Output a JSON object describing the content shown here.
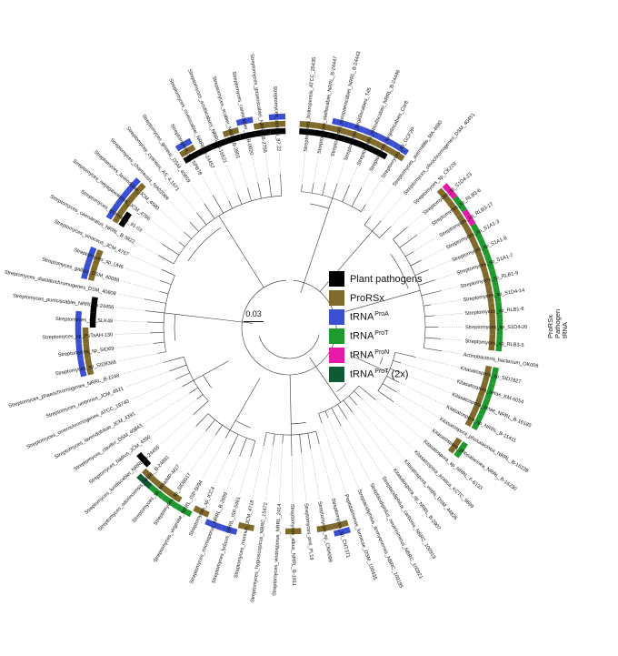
{
  "legend": {
    "items": [
      {
        "label": "Plant pathogens",
        "sup": "",
        "suffix": "",
        "color": "#000000",
        "icon": "legend-swatch"
      },
      {
        "label": "ProRSx",
        "sup": "",
        "suffix": "",
        "color": "#7f6a2c",
        "icon": "legend-swatch"
      },
      {
        "label": "tRNA",
        "sup": "ProA",
        "suffix": "",
        "color": "#3b4fd1",
        "icon": "legend-swatch"
      },
      {
        "label": "tRNA",
        "sup": "ProT",
        "suffix": "",
        "color": "#1f9a2f",
        "icon": "legend-swatch"
      },
      {
        "label": "tRNA",
        "sup": "ProN",
        "suffix": "",
        "color": "#e61aa8",
        "icon": "legend-swatch"
      },
      {
        "label": "tRNA",
        "sup": "ProT",
        "suffix": " (2x)",
        "color": "#0f5a35",
        "icon": "legend-swatch"
      }
    ]
  },
  "scale_bar": {
    "label": "0.03"
  },
  "ring_labels": [
    "ProRSx",
    "Pathogen",
    "tRNA"
  ],
  "leaves": [
    {
      "name": "Streptomyces_bottropensis_ATCC_25435",
      "pathogen": true,
      "prorsx": true,
      "trna": ""
    },
    {
      "name": "Streptomyces_stelliscabiei_NRRL_B-24447",
      "pathogen": true,
      "prorsx": true,
      "trna": ""
    },
    {
      "name": "Streptomyces_europaeiscabiei_NRRL_B-24443",
      "pathogen": true,
      "prorsx": true,
      "trna": "ProA"
    },
    {
      "name": "Streptomyces_turgidiscabies_T45",
      "pathogen": true,
      "prorsx": true,
      "trna": "ProA"
    },
    {
      "name": "Streptomyces_reticuliscabiei_NRRL_B-24446",
      "pathogen": true,
      "prorsx": true,
      "trna": "ProA"
    },
    {
      "name": "Streptomyces_turgidiscabies_Car8",
      "pathogen": true,
      "prorsx": true,
      "trna": "ProA"
    },
    {
      "name": "Streptomyces_sp_GCF2P",
      "pathogen": false,
      "prorsx": true,
      "trna": "ProA"
    },
    {
      "name": "Streptomyces_avermitilis_MA-4680",
      "pathogen": false,
      "prorsx": false,
      "trna": ""
    },
    {
      "name": "Streptomyces_olivochromogenes_DSM_40451",
      "pathogen": false,
      "prorsx": false,
      "trna": ""
    },
    {
      "name": "Streptomyces_sp_CK229",
      "pathogen": false,
      "prorsx": false,
      "trna": ""
    },
    {
      "name": "Streptomyces_sp_S1D4-23",
      "pathogen": false,
      "prorsx": true,
      "trna": "ProN"
    },
    {
      "name": "Streptomyces_sp_RLB3-6",
      "pathogen": false,
      "prorsx": true,
      "trna": "ProT"
    },
    {
      "name": "Streptomyces_sp_RLB3-17",
      "pathogen": false,
      "prorsx": true,
      "trna": "ProN"
    },
    {
      "name": "Streptomyces_sp_S1A1-3",
      "pathogen": false,
      "prorsx": true,
      "trna": "ProT"
    },
    {
      "name": "Streptomyces_sp_S1A1-8",
      "pathogen": false,
      "prorsx": true,
      "trna": "ProT"
    },
    {
      "name": "Streptomyces_sp_S1A1-7",
      "pathogen": false,
      "prorsx": true,
      "trna": "ProT"
    },
    {
      "name": "Streptomyces_sp_RLB1-9",
      "pathogen": false,
      "prorsx": true,
      "trna": "ProT"
    },
    {
      "name": "Streptomyces_sp_S1D4-14",
      "pathogen": false,
      "prorsx": true,
      "trna": "ProT"
    },
    {
      "name": "Streptomyces_sp_RLB1-8",
      "pathogen": false,
      "prorsx": true,
      "trna": "ProT"
    },
    {
      "name": "Streptomyces_sp_S1D4-20",
      "pathogen": false,
      "prorsx": true,
      "trna": "ProT"
    },
    {
      "name": "Streptomyces_sp_RLB3-5",
      "pathogen": false,
      "prorsx": true,
      "trna": "ProT"
    },
    {
      "name": "Actinobacteria_bacterium_OK006",
      "pathogen": false,
      "prorsx": false,
      "trna": ""
    },
    {
      "name": "Kitasatospora_sp_SID7827",
      "pathogen": false,
      "prorsx": true,
      "trna": "ProT"
    },
    {
      "name": "Kitasatospora_setae_KM-6054",
      "pathogen": false,
      "prorsx": true,
      "trna": "ProT"
    },
    {
      "name": "Kitasatospora_setae_NRRL_B-16185",
      "pathogen": false,
      "prorsx": true,
      "trna": "ProT"
    },
    {
      "name": "Kitasatospora_sp_NRRL_B-11411",
      "pathogen": false,
      "prorsx": true,
      "trna": "ProT"
    },
    {
      "name": "Kitasatospora_phosalacinea_NRRL_B-16228",
      "pathogen": false,
      "prorsx": false,
      "trna": ""
    },
    {
      "name": "Kitasatospora_phosalacinea_NRRL_B-16230",
      "pathogen": false,
      "prorsx": true,
      "trna": "ProT"
    },
    {
      "name": "Kitasatospora_sp_NRRL_F-6133",
      "pathogen": false,
      "prorsx": false,
      "trna": ""
    },
    {
      "name": "Kitasatospora_azatica_KCTC_9699",
      "pathogen": false,
      "prorsx": false,
      "trna": ""
    },
    {
      "name": "Kitasatospora_viridis_DSM_44826",
      "pathogen": false,
      "prorsx": false,
      "trna": ""
    },
    {
      "name": "Kitasatospora_sp_NRRL_B-2907",
      "pathogen": false,
      "prorsx": false,
      "trna": ""
    },
    {
      "name": "Streptacidiphilus_carbonis_NBRC_100919",
      "pathogen": false,
      "prorsx": false,
      "trna": ""
    },
    {
      "name": "Streptacidiphilus_neutrinimicus_NBRC_100921",
      "pathogen": false,
      "prorsx": false,
      "trna": ""
    },
    {
      "name": "Streptacidiphilus_anmyonensis_NBRC_103185",
      "pathogen": false,
      "prorsx": false,
      "trna": ""
    },
    {
      "name": "Peptidalmonas_formicae_DSM_100435",
      "pathogen": false,
      "prorsx": false,
      "trna": ""
    },
    {
      "name": "Streptomyces_sp_CNT371",
      "pathogen": false,
      "prorsx": true,
      "trna": "ProA"
    },
    {
      "name": "Streptomyces_sp_CNH099",
      "pathogen": false,
      "prorsx": true,
      "trna": ""
    },
    {
      "name": "Streptomyces_prni_PL19",
      "pathogen": false,
      "prorsx": false,
      "trna": ""
    },
    {
      "name": "Streptomyces_albus_NRRL_B-1811",
      "pathogen": false,
      "prorsx": true,
      "trna": ""
    },
    {
      "name": "Streptomyces_viridosporus_NRRL_2414",
      "pathogen": false,
      "prorsx": false,
      "trna": ""
    },
    {
      "name": "Streptomyces_hygroscopicus_NBRC_15472",
      "pathogen": false,
      "prorsx": false,
      "trna": ""
    },
    {
      "name": "Streptomyces_murinus_JCM_4718",
      "pathogen": false,
      "prorsx": true,
      "trna": ""
    },
    {
      "name": "Streptomyces_lydicus_NRRL_ISP-5461",
      "pathogen": false,
      "prorsx": false,
      "trna": "ProA"
    },
    {
      "name": "Streptomyces_microsporus_NRRL_B-2659",
      "pathogen": false,
      "prorsx": false,
      "trna": "ProA"
    },
    {
      "name": "Streptomyces_sp_ICC4",
      "pathogen": false,
      "prorsx": true,
      "trna": ""
    },
    {
      "name": "Streptomyces_virginiae_NRRL_ISP-5094",
      "pathogen": false,
      "prorsx": false,
      "trna": "ProT"
    },
    {
      "name": "Streptomyces_sp_SID8017",
      "pathogen": false,
      "prorsx": true,
      "trna": "ProT"
    },
    {
      "name": "Streptomyces_sp_MnatMP-M17",
      "pathogen": false,
      "prorsx": true,
      "trna": "ProT"
    },
    {
      "name": "Streptomyces_odorinoensis_NRRL_B-24891",
      "pathogen": false,
      "prorsx": true,
      "trna": "ProT2"
    },
    {
      "name": "Streptomyces_luridiscabiei_NRRL_B-24455",
      "pathogen": true,
      "prorsx": false,
      "trna": ""
    },
    {
      "name": "Streptomyces_badius_JCM_4350",
      "pathogen": false,
      "prorsx": false,
      "trna": ""
    },
    {
      "name": "Streptomyces_clavifer_DSM_40843",
      "pathogen": false,
      "prorsx": false,
      "trna": ""
    },
    {
      "name": "Streptomyces_lavendofoliae_JCM_4391",
      "pathogen": false,
      "prorsx": false,
      "trna": ""
    },
    {
      "name": "Streptomyces_cinerochromogenes_ATCC_19740",
      "pathogen": false,
      "prorsx": false,
      "trna": ""
    },
    {
      "name": "Streptomyces_umbrinus_JCM_4521",
      "pathogen": false,
      "prorsx": false,
      "trna": ""
    },
    {
      "name": "Streptomyces_phaeochromogenes_NRRL_B-1248",
      "pathogen": false,
      "prorsx": false,
      "trna": ""
    },
    {
      "name": "Streptomyces_sp_SID8366",
      "pathogen": false,
      "prorsx": true,
      "trna": "ProA"
    },
    {
      "name": "Streptomyces_sp_SID69",
      "pathogen": false,
      "prorsx": true,
      "trna": "ProA"
    },
    {
      "name": "Streptomyces_sp_PsTaAH-130",
      "pathogen": false,
      "prorsx": true,
      "trna": "ProA"
    },
    {
      "name": "Streptomyces_sp_SLK48",
      "pathogen": true,
      "prorsx": false,
      "trna": "ProA"
    },
    {
      "name": "Streptomyces_puniciscabiei_NRRL_B-24456",
      "pathogen": true,
      "prorsx": false,
      "trna": ""
    },
    {
      "name": "Streptomyces_diastatochromogenes_DSM_40608",
      "pathogen": false,
      "prorsx": false,
      "trna": ""
    },
    {
      "name": "Streptomyces_galbus_DSM_40089",
      "pathogen": false,
      "prorsx": true,
      "trna": "ProA"
    },
    {
      "name": "Streptomyces_sp_UH6",
      "pathogen": false,
      "prorsx": true,
      "trna": "ProA"
    },
    {
      "name": "Streptomyces_vinaceus_JCM_4767",
      "pathogen": false,
      "prorsx": false,
      "trna": ""
    },
    {
      "name": "Streptomyces_caeruleatus_NRRL_B-3822",
      "pathogen": false,
      "prorsx": false,
      "trna": ""
    },
    {
      "name": "Streptomyces_ipomoeae_91-03",
      "pathogen": true,
      "prorsx": true,
      "trna": "ProA"
    },
    {
      "name": "Streptomyces_neyagawaensis_JCM_4786",
      "pathogen": false,
      "prorsx": true,
      "trna": "ProA"
    },
    {
      "name": "Streptomyces_lavendulae_JCM_4580",
      "pathogen": false,
      "prorsx": true,
      "trna": "ProA"
    },
    {
      "name": "Streptomyces_chartreusis_NA02069",
      "pathogen": false,
      "prorsx": false,
      "trna": ""
    },
    {
      "name": "Streptomyces_cyaneus_AS_4.1671",
      "pathogen": false,
      "prorsx": false,
      "trna": ""
    },
    {
      "name": "Streptomyces_griseus_DSM_40659",
      "pathogen": false,
      "prorsx": false,
      "trna": ""
    },
    {
      "name": "Streptomyces_sp_SPB78",
      "pathogen": true,
      "prorsx": true,
      "trna": "ProA"
    },
    {
      "name": "Streptomyces_niveiscabiei_NRRL_B-24457",
      "pathogen": true,
      "prorsx": false,
      "trna": ""
    },
    {
      "name": "Streptomyces_acidiscabies_NRRL_B-16521",
      "pathogen": true,
      "prorsx": false,
      "trna": ""
    },
    {
      "name": "Streptomyces_scabiei_NRRL_B-2801",
      "pathogen": true,
      "prorsx": true,
      "trna": ""
    },
    {
      "name": "Streptomyces_caniscabiei_NEB-0020",
      "pathogen": true,
      "prorsx": false,
      "trna": "ProA"
    },
    {
      "name": "Streptomyces_griseoscabiei_NRRL_B-2795",
      "pathogen": true,
      "prorsx": true,
      "trna": ""
    },
    {
      "name": "Streptomyces_scabiei_87.22",
      "pathogen": true,
      "prorsx": true,
      "trna": "ProA"
    }
  ]
}
